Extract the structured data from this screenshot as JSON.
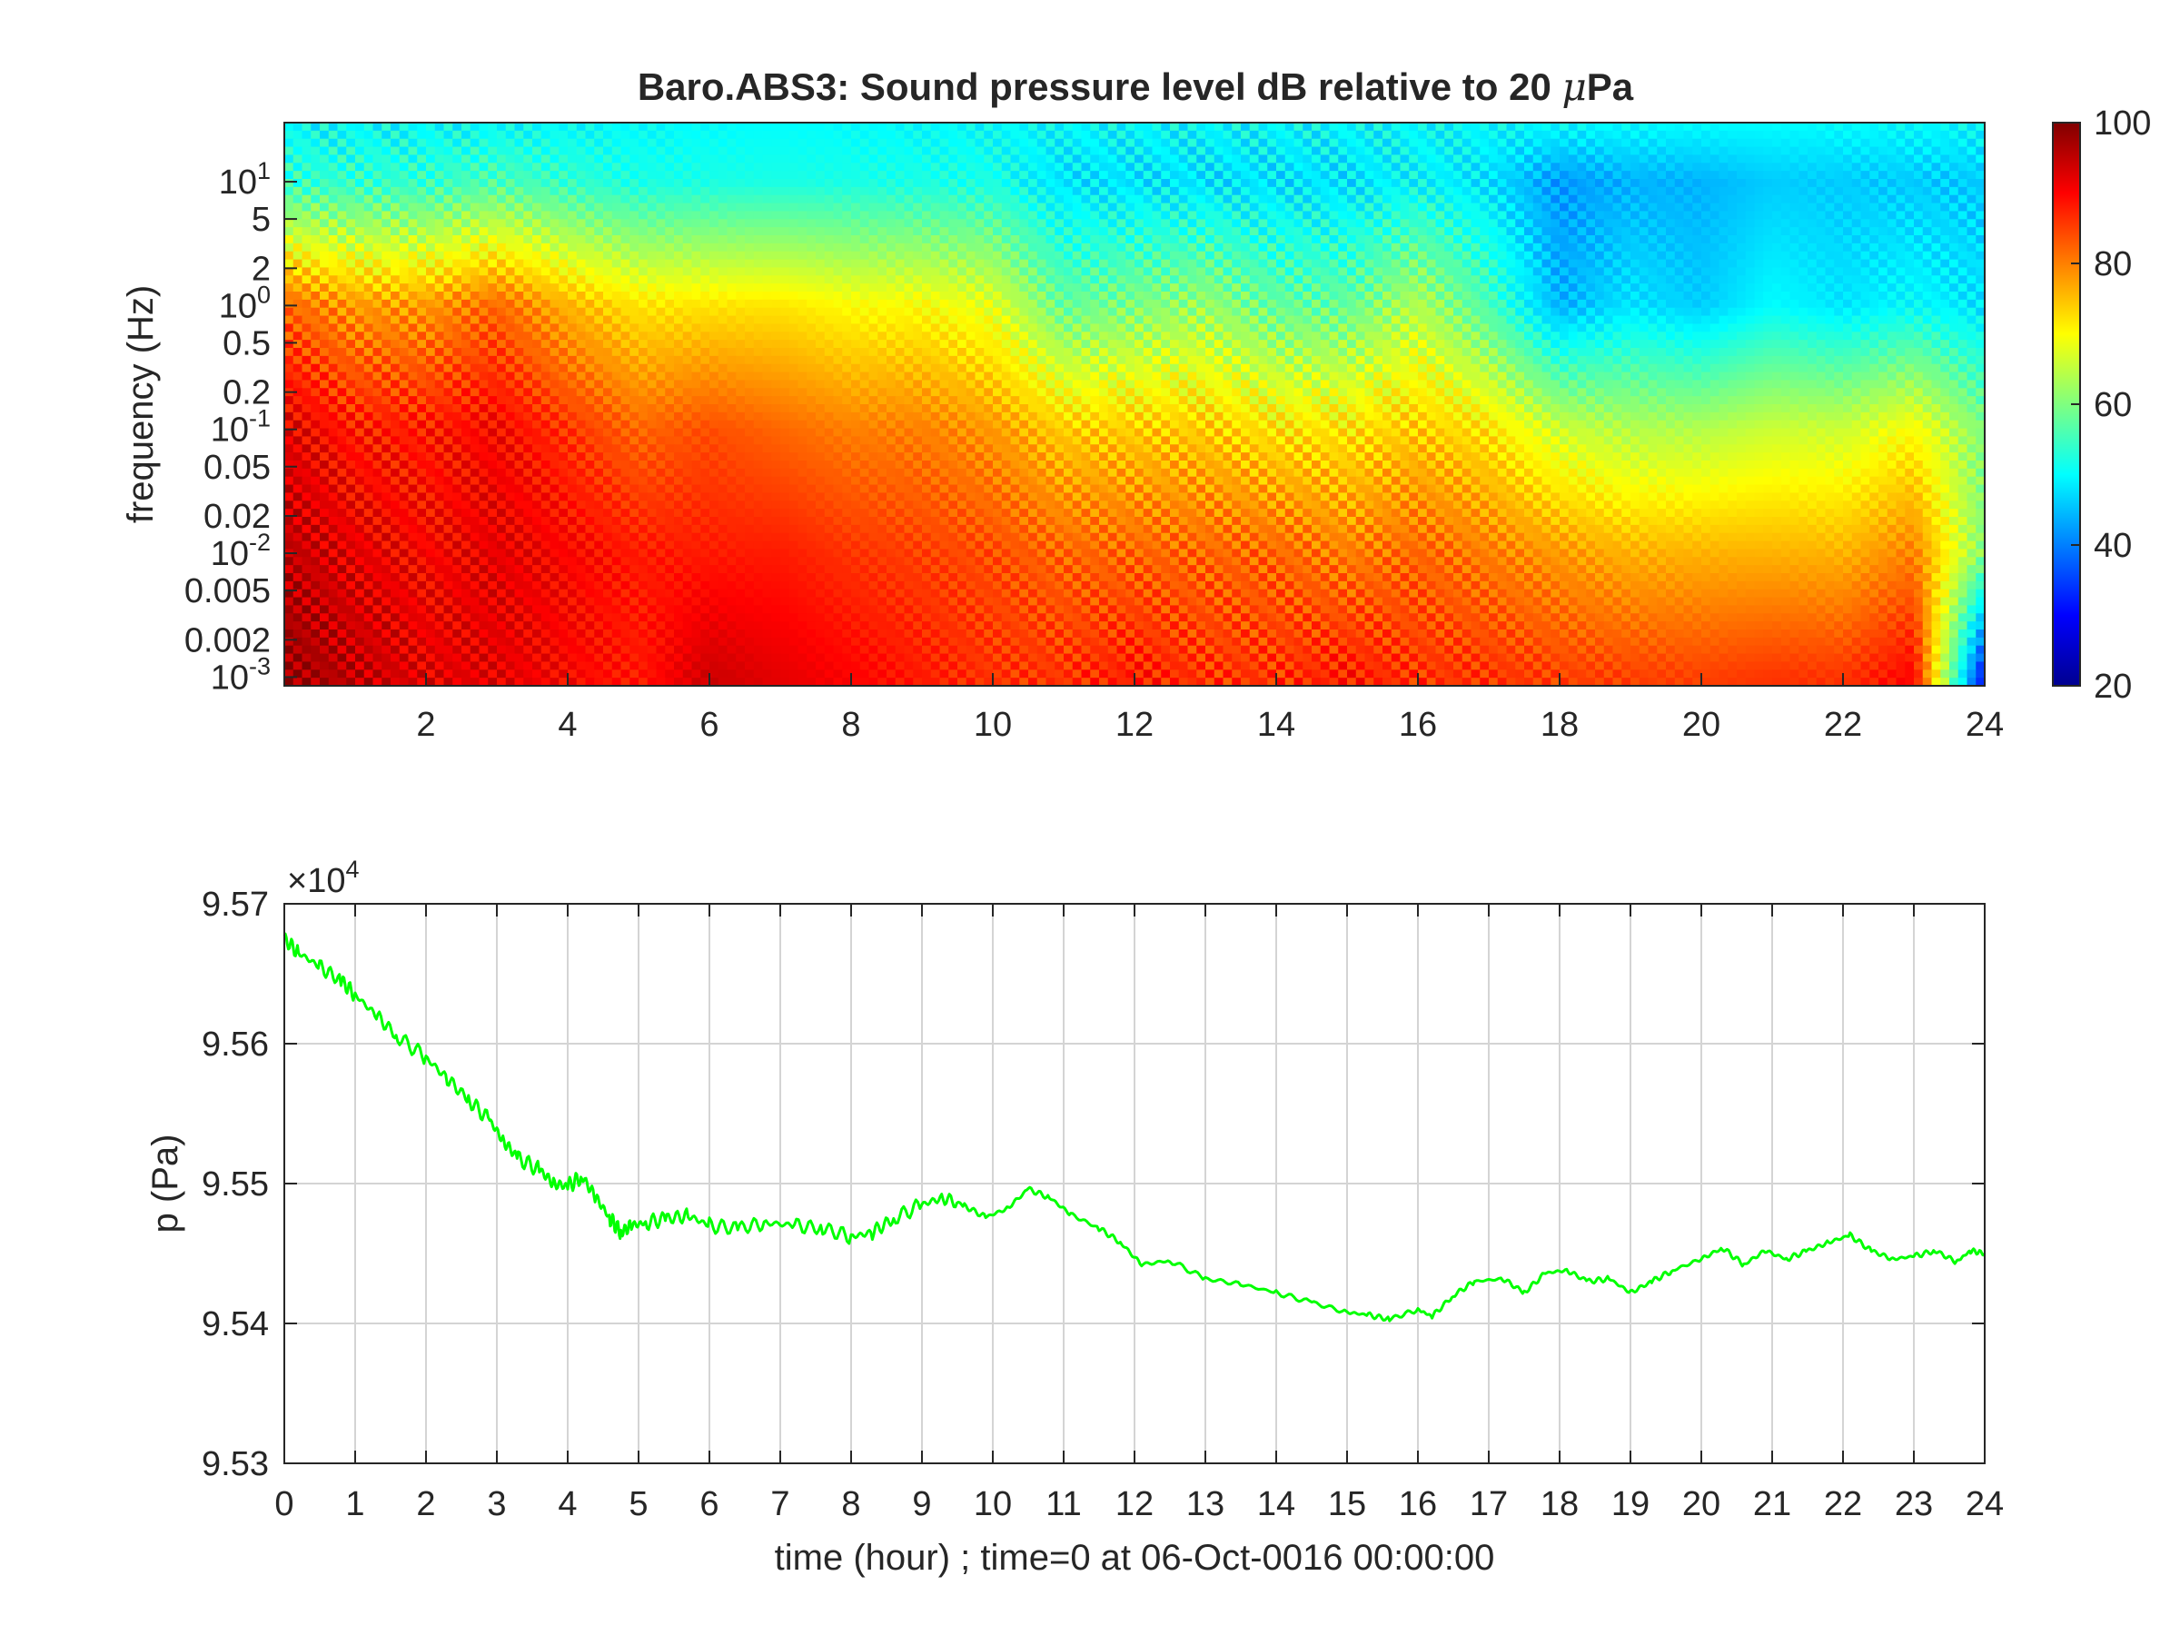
{
  "chart_data": [
    {
      "type": "heatmap",
      "title": "Baro.ABS3: Sound pressure level dB relative to 20 μPa",
      "title_prefix": "Baro.ABS3: Sound pressure level dB relative to 20 ",
      "title_mu": "μ",
      "title_unit": "Pa",
      "xlabel": "",
      "ylabel": "frequency (Hz)",
      "x_scale": "linear",
      "y_scale": "log",
      "xlim": [
        0,
        24
      ],
      "ylim": [
        0.00085,
        30
      ],
      "x_ticks": [
        2,
        4,
        6,
        8,
        10,
        12,
        14,
        16,
        18,
        20,
        22,
        24
      ],
      "y_ticks": [
        {
          "value": 0.001,
          "base": "10",
          "exp": "-3"
        },
        {
          "value": 0.002,
          "label": "0.002"
        },
        {
          "value": 0.005,
          "label": "0.005"
        },
        {
          "value": 0.01,
          "base": "10",
          "exp": "-2"
        },
        {
          "value": 0.02,
          "label": "0.02"
        },
        {
          "value": 0.05,
          "label": "0.05"
        },
        {
          "value": 0.1,
          "base": "10",
          "exp": "-1"
        },
        {
          "value": 0.2,
          "label": "0.2"
        },
        {
          "value": 0.5,
          "label": "0.5"
        },
        {
          "value": 1,
          "base": "10",
          "exp": "0"
        },
        {
          "value": 2,
          "label": "2"
        },
        {
          "value": 5,
          "label": "5"
        },
        {
          "value": 10,
          "base": "10",
          "exp": "1"
        }
      ],
      "colormap": "jet",
      "colorbar": {
        "range": [
          20,
          100
        ],
        "ticks": [
          20,
          40,
          60,
          80,
          100
        ]
      },
      "grid": false,
      "level_profile_db": {
        "hours": [
          0,
          1,
          2,
          3,
          4,
          5,
          6,
          7,
          8,
          9,
          10,
          11,
          12,
          13,
          14,
          15,
          16,
          17,
          18,
          19,
          20,
          21,
          22,
          23,
          24
        ],
        "f_0_001": [
          98,
          95,
          92,
          92,
          90,
          88,
          94,
          92,
          90,
          88,
          86,
          86,
          88,
          86,
          86,
          88,
          86,
          86,
          85,
          85,
          85,
          86,
          86,
          90,
          30
        ],
        "f_0_01": [
          95,
          92,
          90,
          92,
          90,
          88,
          88,
          88,
          86,
          85,
          84,
          82,
          82,
          82,
          82,
          80,
          82,
          80,
          78,
          76,
          76,
          76,
          76,
          80,
          60
        ],
        "f_0_1": [
          92,
          88,
          88,
          90,
          86,
          82,
          84,
          82,
          80,
          80,
          78,
          74,
          74,
          74,
          72,
          72,
          74,
          72,
          66,
          64,
          64,
          66,
          66,
          70,
          60
        ],
        "f_1": [
          82,
          78,
          78,
          82,
          76,
          72,
          72,
          72,
          70,
          70,
          68,
          58,
          60,
          62,
          58,
          58,
          64,
          56,
          44,
          48,
          46,
          50,
          48,
          50,
          48
        ],
        "f_10": [
          54,
          54,
          54,
          56,
          54,
          52,
          52,
          52,
          52,
          52,
          52,
          48,
          48,
          48,
          48,
          48,
          50,
          48,
          42,
          44,
          44,
          46,
          46,
          46,
          46
        ],
        "f_30": [
          50,
          50,
          50,
          50,
          50,
          50,
          50,
          50,
          50,
          50,
          50,
          50,
          50,
          50,
          50,
          50,
          50,
          50,
          50,
          50,
          50,
          50,
          50,
          50,
          50
        ]
      }
    },
    {
      "type": "line",
      "xlabel": "time (hour) ; time=0 at 06-Oct-0016 00:00:00",
      "ylabel": "p (Pa)",
      "y_multiplier": "×10",
      "y_multiplier_exp": "4",
      "xlim": [
        0,
        24
      ],
      "ylim": [
        95300,
        95700
      ],
      "x_ticks": [
        0,
        1,
        2,
        3,
        4,
        5,
        6,
        7,
        8,
        9,
        10,
        11,
        12,
        13,
        14,
        15,
        16,
        17,
        18,
        19,
        20,
        21,
        22,
        23,
        24
      ],
      "y_ticks": [
        95300,
        95400,
        95500,
        95600,
        95700
      ],
      "y_tick_labels": [
        "9.53",
        "9.54",
        "9.55",
        "9.56",
        "9.57"
      ],
      "grid": true,
      "series": [
        {
          "color": "#00ff00",
          "x": [
            0,
            0.2,
            0.5,
            0.8,
            1,
            1.3,
            1.6,
            2,
            2.3,
            2.6,
            2.9,
            3.1,
            3.3,
            3.6,
            3.8,
            4.0,
            4.2,
            4.4,
            4.6,
            4.75,
            4.9,
            5.1,
            5.4,
            5.7,
            6,
            6.4,
            6.8,
            7.2,
            7.6,
            8,
            8.3,
            8.6,
            9,
            9.3,
            9.6,
            9.9,
            10.2,
            10.5,
            10.8,
            11.1,
            11.5,
            11.8,
            12.1,
            12.5,
            13,
            13.5,
            14,
            14.5,
            15,
            15.3,
            15.6,
            16,
            16.2,
            16.5,
            16.8,
            17.2,
            17.5,
            17.8,
            18.1,
            18.4,
            18.7,
            19,
            19.3,
            19.6,
            20,
            20.3,
            20.6,
            20.9,
            21.2,
            21.5,
            21.8,
            22.1,
            22.4,
            22.7,
            23,
            23.3,
            23.6,
            23.8,
            24
          ],
          "y": [
            95675,
            95665,
            95655,
            95645,
            95635,
            95620,
            95605,
            95590,
            95575,
            95560,
            95545,
            95530,
            95518,
            95510,
            95500,
            95498,
            95505,
            95490,
            95475,
            95465,
            95470,
            95472,
            95475,
            95477,
            95470,
            95468,
            95472,
            95470,
            95468,
            95462,
            95465,
            95475,
            95485,
            95490,
            95484,
            95476,
            95482,
            95496,
            95490,
            95478,
            95468,
            95458,
            95442,
            95445,
            95432,
            95428,
            95422,
            95415,
            95408,
            95406,
            95403,
            95410,
            95405,
            95420,
            95430,
            95432,
            95422,
            95436,
            95438,
            95430,
            95432,
            95422,
            95430,
            95438,
            95446,
            95454,
            95442,
            95452,
            95446,
            95452,
            95458,
            95463,
            95452,
            95446,
            95448,
            95452,
            95444,
            95452,
            95450
          ]
        }
      ]
    }
  ]
}
